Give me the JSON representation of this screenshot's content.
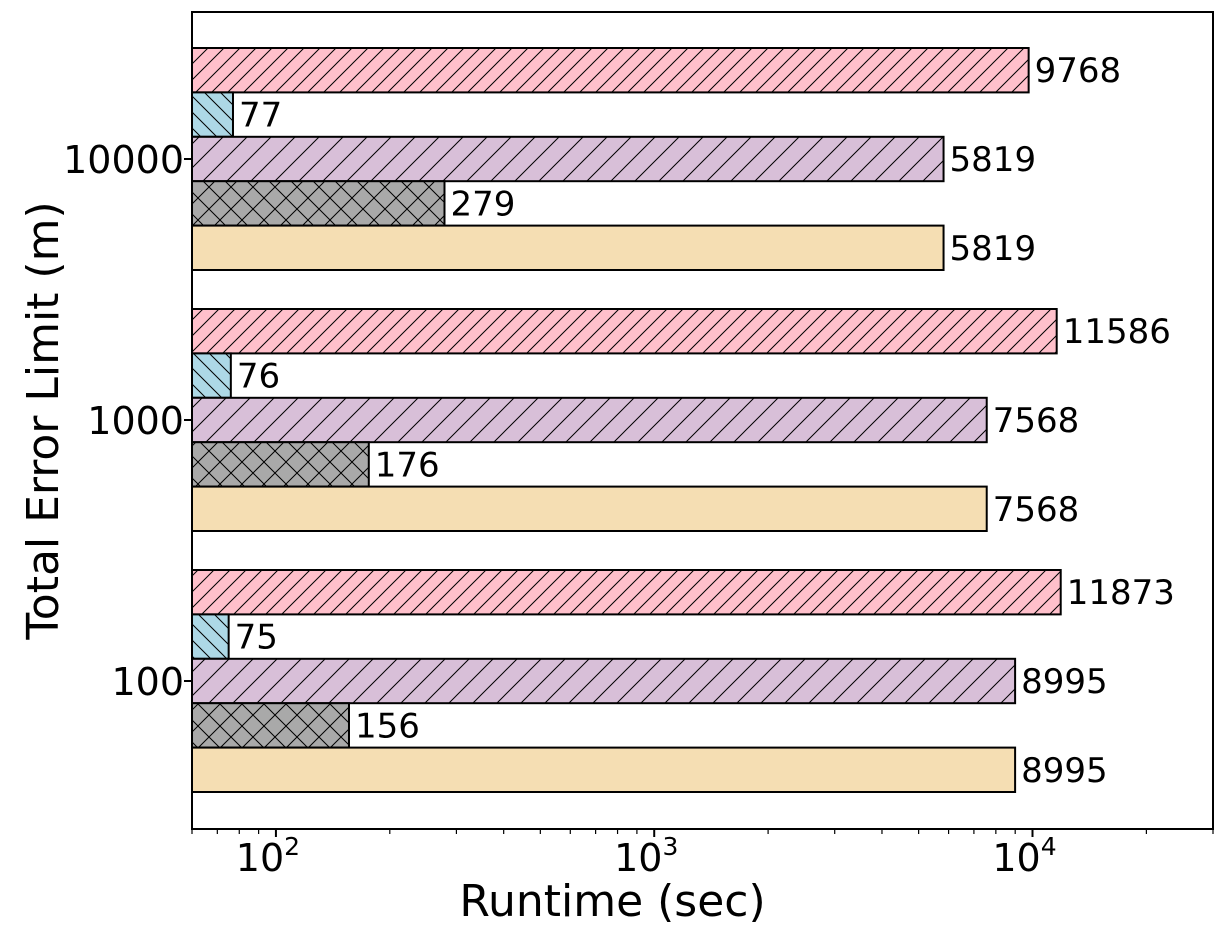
{
  "chart_data": {
    "type": "bar",
    "orientation": "horizontal",
    "xscale": "log",
    "xlim": [
      60,
      30000
    ],
    "xlabel": "Runtime (sec)",
    "ylabel": "Total Error Limit (m)",
    "xticks": [
      {
        "value": 100,
        "base": "10",
        "exp": "2"
      },
      {
        "value": 1000,
        "base": "10",
        "exp": "3"
      },
      {
        "value": 10000,
        "base": "10",
        "exp": "4"
      }
    ],
    "categories": [
      "10000",
      "1000",
      "100"
    ],
    "grid": false,
    "legend": "none",
    "series": [
      {
        "fill": "#ffc0cb",
        "hatch": "diag-fwd",
        "values": [
          9768,
          11586,
          11873
        ]
      },
      {
        "fill": "#add8e6",
        "hatch": "diag-back",
        "values": [
          77,
          76,
          75
        ]
      },
      {
        "fill": "#d8bfd8",
        "hatch": "diag-fwd-wide",
        "values": [
          5819,
          7568,
          8995
        ]
      },
      {
        "fill": "#a9a9a9",
        "hatch": "cross",
        "values": [
          279,
          176,
          156
        ]
      },
      {
        "fill": "#f5deb3",
        "hatch": "none",
        "values": [
          5819,
          7568,
          8995
        ]
      }
    ]
  }
}
